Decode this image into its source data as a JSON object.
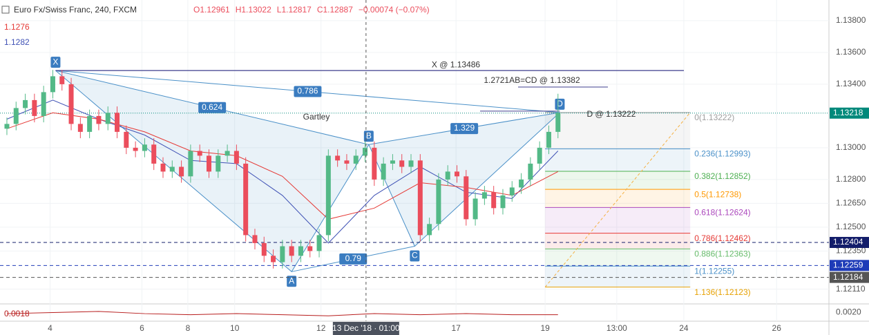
{
  "chart_data": {
    "type": "candlestick",
    "title": "Euro Fx/Swiss Franc, 240, FXCM",
    "ohlc_labels": [
      "O1.12961",
      "H1.13022",
      "L1.12817",
      "C1.12887",
      "−0.00074 (−0.07%)"
    ],
    "indicator_values": [
      {
        "text": "1.1276",
        "color": "#e53935"
      },
      {
        "text": "1.1282",
        "color": "#3f51b5"
      }
    ],
    "up_color": "#53b987",
    "down_color": "#eb4d5c",
    "open": [
      1.1312,
      1.1315,
      1.1325,
      1.133,
      1.132,
      1.1335,
      1.1345,
      1.134,
      1.1315,
      1.131,
      1.132,
      1.1315,
      1.1322,
      1.131,
      1.13,
      1.1298,
      1.1302,
      1.129,
      1.1285,
      1.1288,
      1.1282,
      1.1298,
      1.1295,
      1.1285,
      1.1295,
      1.1298,
      1.129,
      1.1245,
      1.124,
      1.1232,
      1.1228,
      1.1238,
      1.1232,
      1.1238,
      1.1235,
      1.1245,
      1.1295,
      1.1292,
      1.129,
      1.1295,
      1.13,
      1.128,
      1.129,
      1.1292,
      1.1288,
      1.1292,
      1.1245,
      1.1252,
      1.128,
      1.1285,
      1.1282,
      1.1255,
      1.1268,
      1.1272,
      1.1262,
      1.127,
      1.1275,
      1.128,
      1.129,
      1.13,
      1.131
    ],
    "high": [
      1.1319,
      1.1329,
      1.1334,
      1.1334,
      1.1339,
      1.1349,
      1.1349,
      1.1344,
      1.1319,
      1.1324,
      1.1324,
      1.1326,
      1.1326,
      1.1314,
      1.1304,
      1.1306,
      1.1306,
      1.1294,
      1.1292,
      1.1292,
      1.1302,
      1.1302,
      1.1299,
      1.1299,
      1.1302,
      1.1302,
      1.1294,
      1.1249,
      1.1244,
      1.1236,
      1.1242,
      1.1242,
      1.1242,
      1.1242,
      1.1249,
      1.1299,
      1.1299,
      1.1296,
      1.1299,
      1.1304,
      1.1304,
      1.1294,
      1.1296,
      1.1296,
      1.1296,
      1.1296,
      1.1256,
      1.1284,
      1.1289,
      1.1289,
      1.1286,
      1.1272,
      1.1276,
      1.1276,
      1.1274,
      1.1279,
      1.1284,
      1.1294,
      1.1304,
      1.1314,
      1.1334
    ],
    "low": [
      1.1308,
      1.1311,
      1.1321,
      1.1316,
      1.1316,
      1.1331,
      1.1336,
      1.1311,
      1.1306,
      1.1306,
      1.1311,
      1.1311,
      1.1306,
      1.1296,
      1.1294,
      1.1294,
      1.1286,
      1.1281,
      1.1281,
      1.1278,
      1.1278,
      1.1291,
      1.1281,
      1.1281,
      1.1291,
      1.1286,
      1.1241,
      1.1236,
      1.1228,
      1.1224,
      1.1224,
      1.1228,
      1.1228,
      1.1231,
      1.1231,
      1.1241,
      1.1288,
      1.1286,
      1.1286,
      1.1291,
      1.1276,
      1.1276,
      1.1286,
      1.1284,
      1.1284,
      1.1241,
      1.1241,
      1.1248,
      1.1276,
      1.1278,
      1.1251,
      1.1251,
      1.1264,
      1.1258,
      1.1258,
      1.1266,
      1.1271,
      1.1276,
      1.1286,
      1.1296,
      1.1306
    ],
    "close": [
      1.1315,
      1.1325,
      1.133,
      1.132,
      1.1335,
      1.1345,
      1.134,
      1.1315,
      1.131,
      1.132,
      1.1315,
      1.1322,
      1.131,
      1.13,
      1.1298,
      1.1302,
      1.129,
      1.1285,
      1.1288,
      1.1282,
      1.1298,
      1.1295,
      1.1285,
      1.1295,
      1.1298,
      1.129,
      1.1245,
      1.124,
      1.1232,
      1.1228,
      1.1238,
      1.1232,
      1.1238,
      1.1235,
      1.1245,
      1.1295,
      1.1292,
      1.129,
      1.1295,
      1.13,
      1.128,
      1.129,
      1.1292,
      1.1288,
      1.1292,
      1.1245,
      1.1252,
      1.128,
      1.1285,
      1.1282,
      1.1255,
      1.1268,
      1.1272,
      1.1262,
      1.127,
      1.1275,
      1.128,
      1.129,
      1.13,
      1.131,
      1.1322
    ],
    "ma_index": [
      0,
      5,
      10,
      15,
      20,
      25,
      30,
      35,
      40,
      45,
      50,
      55,
      60
    ],
    "ma_series": [
      {
        "color": "#3f51b5",
        "values": [
          1.1318,
          1.133,
          1.1318,
          1.1308,
          1.1292,
          1.129,
          1.127,
          1.124,
          1.127,
          1.1288,
          1.1272,
          1.1268,
          1.1298
        ]
      },
      {
        "color": "#e53935",
        "values": [
          1.1312,
          1.1322,
          1.1318,
          1.131,
          1.1298,
          1.1295,
          1.1282,
          1.1255,
          1.1262,
          1.1278,
          1.1275,
          1.127,
          1.1285
        ]
      }
    ],
    "osc": {
      "label": "0.0018",
      "color": "#b71c1c",
      "values": [
        0.0019,
        0.002,
        0.0021,
        0.0019,
        0.0018,
        0.0019,
        0.0018,
        0.0017,
        0.0019,
        0.0018,
        0.0019,
        0.0018,
        0.0018
      ],
      "ylim": [
        0.0012,
        0.0028
      ],
      "yticks": [
        {
          "value": 0.002,
          "label": "0.0020"
        }
      ]
    },
    "xlim": [
      -0.75,
      89.5
    ],
    "ylim": [
      1.12017,
      1.1393
    ],
    "yticks": [
      {
        "value": 1.138,
        "label": "1.13800"
      },
      {
        "value": 1.136,
        "label": "1.13600"
      },
      {
        "value": 1.134,
        "label": "1.13400"
      },
      {
        "value": 1.13,
        "label": "1.13000"
      },
      {
        "value": 1.128,
        "label": "1.12800"
      },
      {
        "value": 1.1265,
        "label": "1.12650"
      },
      {
        "value": 1.125,
        "label": "1.12500"
      },
      {
        "value": 1.1235,
        "label": "1.12350"
      },
      {
        "value": 1.1211,
        "label": "1.12110"
      }
    ],
    "xticks": [
      {
        "value": 4.7,
        "label": "4"
      },
      {
        "value": 14.7,
        "label": "6"
      },
      {
        "value": 19.7,
        "label": "8"
      },
      {
        "value": 24.8,
        "label": "10"
      },
      {
        "value": 34.2,
        "label": "12"
      },
      {
        "value": 48.9,
        "label": "17"
      },
      {
        "value": 58.6,
        "label": "19"
      },
      {
        "value": 66.4,
        "label": "13:00"
      },
      {
        "value": 73.7,
        "label": "24"
      },
      {
        "value": 83.8,
        "label": "26"
      }
    ],
    "crosshair": {
      "value": 39.1,
      "label": "13 Dec '18 · 01:00"
    },
    "price_tags": [
      {
        "value": 1.13218,
        "color": "#00897b"
      },
      {
        "value": 1.12404,
        "color": "#131d6a"
      },
      {
        "value": 1.12259,
        "color": "#1e3bb8"
      },
      {
        "value": 1.12184,
        "color": "#555555"
      }
    ],
    "pattern": {
      "name": "Gartley",
      "points": [
        {
          "label": "X",
          "x": 5.3,
          "value": 1.13486
        },
        {
          "label": "A",
          "x": 31,
          "value": 1.1222
        },
        {
          "label": "B",
          "x": 39.4,
          "value": 1.1302
        },
        {
          "label": "C",
          "x": 44.4,
          "value": 1.1238
        },
        {
          "label": "D",
          "x": 60.2,
          "value": 1.13222
        }
      ],
      "ratios": [
        "0.624",
        "0.786",
        "1.329",
        "0.79"
      ],
      "annotations": [
        "X @ 1.13486",
        "1.2721AB=CD @ 1.13382",
        "D @ 1.13222"
      ],
      "abcd_value": 1.13382
    },
    "fib_levels": [
      {
        "label": "0(1.13222)",
        "value": 1.13222,
        "color": "#9e9e9e"
      },
      {
        "label": "0.236(1.12993)",
        "value": 1.12993,
        "color": "#4a90c8"
      },
      {
        "label": "0.382(1.12852)",
        "value": 1.12852,
        "color": "#4caf50"
      },
      {
        "label": "0.5(1.12738)",
        "value": 1.12738,
        "color": "#ff9800"
      },
      {
        "label": "0.618(1.12624)",
        "value": 1.12624,
        "color": "#ab47bc"
      },
      {
        "label": "0.786(1.12462)",
        "value": 1.12462,
        "color": "#e53935"
      },
      {
        "label": "0.886(1.12363)",
        "value": 1.12363,
        "color": "#66bb6a"
      },
      {
        "label": "1(1.12255)",
        "value": 1.12255,
        "color": "#4a90c8"
      },
      {
        "label": "1.136(1.12123)",
        "value": 1.12123,
        "color": "#e6a000"
      }
    ]
  }
}
